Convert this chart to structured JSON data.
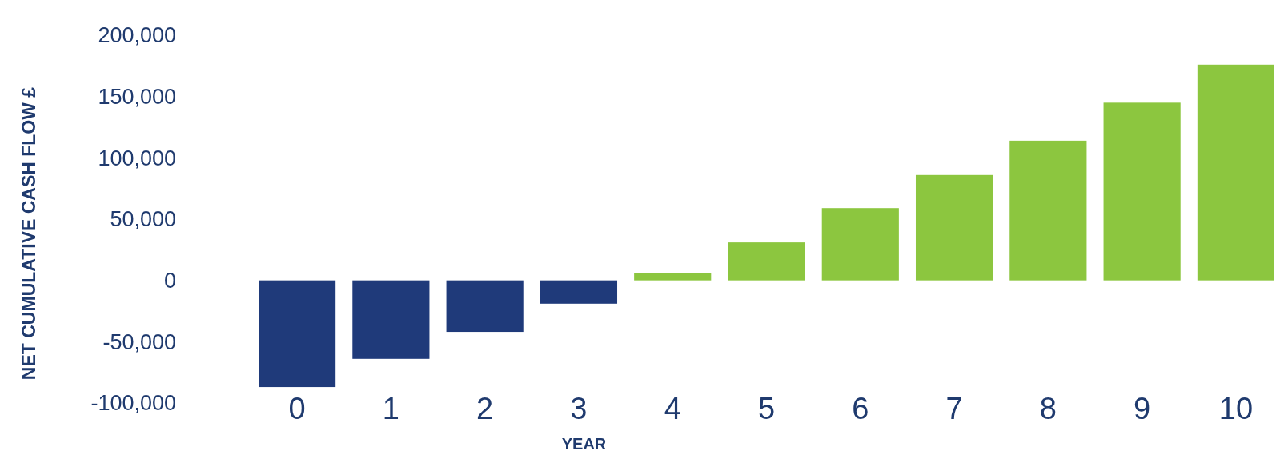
{
  "chart_data": {
    "type": "bar",
    "xlabel": "YEAR",
    "ylabel": "NET CUMULATIVE CASH FLOW £",
    "categories": [
      "0",
      "1",
      "2",
      "3",
      "4",
      "5",
      "6",
      "7",
      "8",
      "9",
      "10"
    ],
    "values": [
      -87000,
      -64000,
      -42000,
      -19000,
      6000,
      31000,
      59000,
      86000,
      114000,
      145000,
      176000
    ],
    "colors": [
      "#1f3a7a",
      "#1f3a7a",
      "#1f3a7a",
      "#1f3a7a",
      "#8cc63f",
      "#8cc63f",
      "#8cc63f",
      "#8cc63f",
      "#8cc63f",
      "#8cc63f",
      "#8cc63f"
    ],
    "ylim": [
      -100000,
      200000
    ],
    "yticks": [
      {
        "value": -100000,
        "label": "-100,000"
      },
      {
        "value": -50000,
        "label": "-50,000"
      },
      0,
      {
        "value": 50000,
        "label": "50,000"
      },
      {
        "value": 100000,
        "label": "100,000"
      },
      {
        "value": 150000,
        "label": "150,000"
      },
      {
        "value": 200000,
        "label": "200,000"
      }
    ],
    "grid": false
  }
}
